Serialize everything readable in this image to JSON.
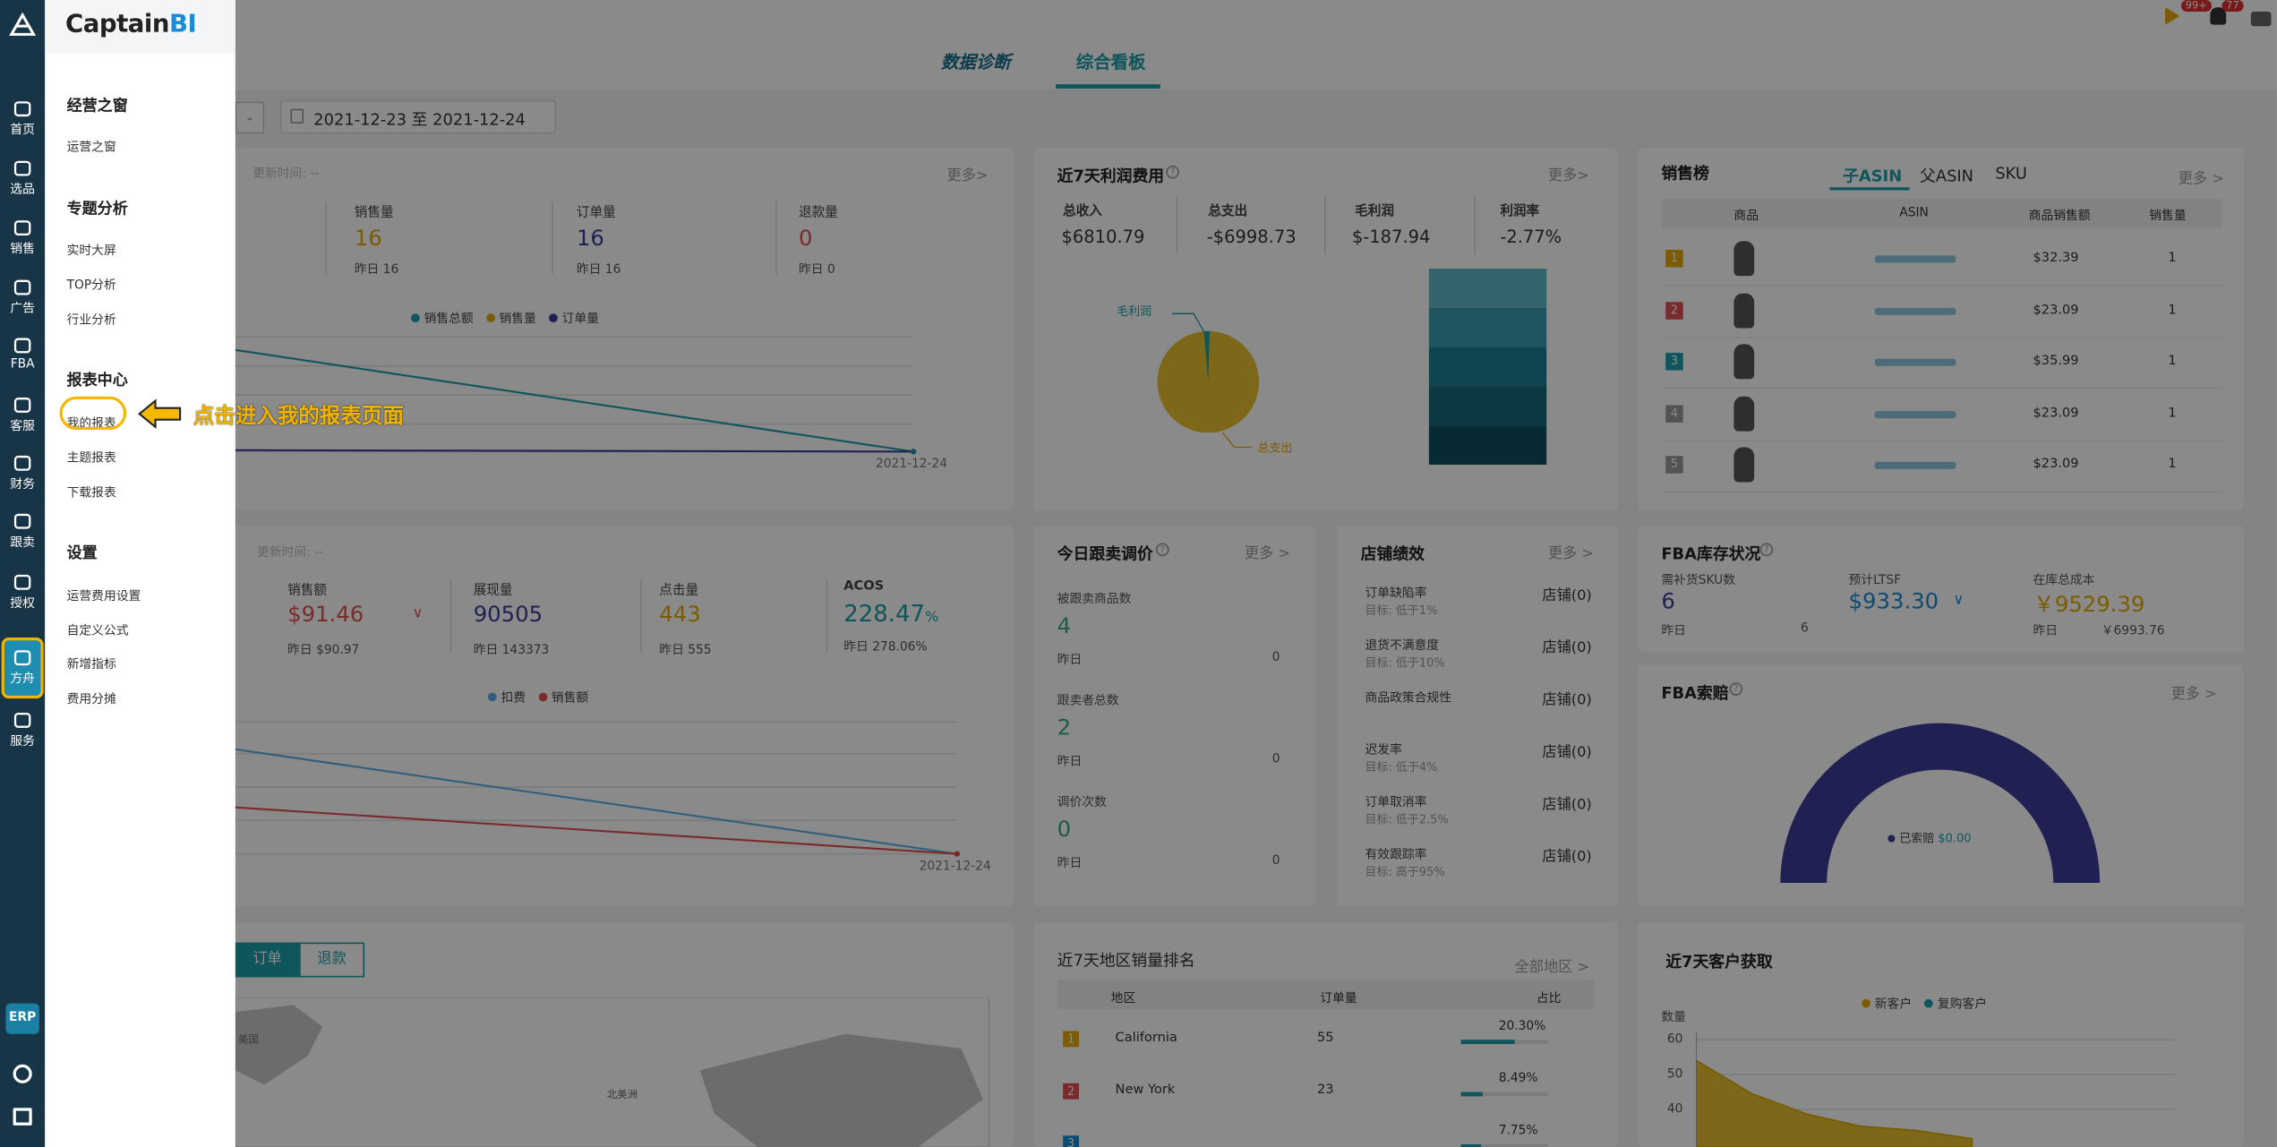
{
  "menu": {
    "brand_main": "Captain",
    "brand_bi": "BI",
    "sections": [
      {
        "title": "经营之窗",
        "items": [
          "运营之窗"
        ]
      },
      {
        "title": "专题分析",
        "items": [
          "实时大屏",
          "TOP分析",
          "行业分析"
        ]
      },
      {
        "title": "报表中心",
        "items": [
          "我的报表",
          "主题报表",
          "下载报表"
        ]
      },
      {
        "title": "设置",
        "items": [
          "运营费用设置",
          "自定义公式",
          "新增指标",
          "费用分摊"
        ]
      }
    ],
    "callout": "点击进入我的报表页面"
  },
  "rail": {
    "items": [
      {
        "label": "首页",
        "icon": "home-icon"
      },
      {
        "label": "选品",
        "icon": "search-icon"
      },
      {
        "label": "销售",
        "icon": "trend-chart-icon"
      },
      {
        "label": "广告",
        "icon": "ad-icon"
      },
      {
        "label": "FBA",
        "icon": "warehouse-icon"
      },
      {
        "label": "客服",
        "icon": "bar-chart-icon"
      },
      {
        "label": "财务",
        "icon": "dollar-icon"
      },
      {
        "label": "跟卖",
        "icon": "pie-chart-icon"
      },
      {
        "label": "授权",
        "icon": "shield-icon"
      },
      {
        "label": "方舟",
        "icon": "ark-icon"
      },
      {
        "label": "服务",
        "icon": "service-icon"
      }
    ],
    "erp": "ERP",
    "active": "方舟"
  },
  "header": {
    "tabs": [
      "数据诊断",
      "综合看板"
    ],
    "active_tab": "综合看板",
    "badge_play": "99+",
    "badge_bell": "77",
    "date_range": "2021-12-23 至 2021-12-24"
  },
  "sales_card": {
    "update_label": "更新时间: --",
    "more": "更多>",
    "metrics": [
      {
        "label": "销售量",
        "value": "16",
        "yesterday": "昨日 16",
        "color": "#e8a800"
      },
      {
        "label": "订单量",
        "value": "16",
        "yesterday": "昨日 16",
        "color": "#3b3b9a"
      },
      {
        "label": "退款量",
        "value": "0",
        "yesterday": "昨日 0",
        "color": "#e05050"
      }
    ],
    "legend": [
      "销售总额",
      "销售量",
      "订单量"
    ],
    "x_end": "2021-12-24"
  },
  "ad_card": {
    "update_label": "更新时间: --",
    "metrics": [
      {
        "label": "销售额",
        "value": "$91.46",
        "yesterday": "昨日  $90.97",
        "color": "#e05050"
      },
      {
        "label": "展现量",
        "value": "90505",
        "yesterday": "昨日  143373",
        "color": "#3b3b9a"
      },
      {
        "label": "点击量",
        "value": "443",
        "yesterday": "昨日  555",
        "color": "#e8a800"
      },
      {
        "label": "ACOS",
        "value": "228.47",
        "unit": "%",
        "yesterday": "昨日  278.06%",
        "color": "#1aa0a8"
      }
    ],
    "legend": [
      "扣费",
      "销售额"
    ],
    "x_end": "2021-12-24"
  },
  "profit_card": {
    "title": "近7天利润费用",
    "more": "更多>",
    "cols": [
      {
        "label": "总收入",
        "value": "$6810.79"
      },
      {
        "label": "总支出",
        "value": "-$6998.73"
      },
      {
        "label": "毛利润",
        "value": "$-187.94"
      },
      {
        "label": "利润率",
        "value": "-2.77%"
      }
    ],
    "pie_labels": [
      "毛利润",
      "总支出"
    ]
  },
  "rank_card": {
    "title": "销售榜",
    "tabs": [
      "子ASIN",
      "父ASIN",
      "SKU"
    ],
    "more": "更多 >",
    "headers": [
      "商品",
      "ASIN",
      "商品销售额",
      "销售量"
    ],
    "rows": [
      {
        "rank": "1",
        "amount": "$32.39",
        "qty": "1",
        "rank_color": "#e8a800"
      },
      {
        "rank": "2",
        "amount": "$23.09",
        "qty": "1",
        "rank_color": "#e05050"
      },
      {
        "rank": "3",
        "amount": "$35.99",
        "qty": "1",
        "rank_color": "#1aa0a8"
      },
      {
        "rank": "4",
        "amount": "$23.09",
        "qty": "1",
        "rank_color": "#999999"
      },
      {
        "rank": "5",
        "amount": "$23.09",
        "qty": "1",
        "rank_color": "#999999"
      }
    ]
  },
  "follow_card": {
    "title": "今日跟卖调价",
    "more": "更多 >",
    "items": [
      {
        "label": "被跟卖商品数",
        "value": "4",
        "yesterday": "昨日",
        "y_val": "0"
      },
      {
        "label": "跟卖者总数",
        "value": "2",
        "yesterday": "昨日",
        "y_val": "0"
      },
      {
        "label": "调价次数",
        "value": "0",
        "yesterday": "昨日",
        "y_val": "0"
      }
    ]
  },
  "store_card": {
    "title": "店铺绩效",
    "more": "更多 >",
    "items": [
      {
        "label": "订单缺陷率",
        "target": "目标: 低于1%",
        "value": "店铺(0)"
      },
      {
        "label": "退货不满意度",
        "target": "目标: 低于10%",
        "value": "店铺(0)"
      },
      {
        "label": "商品政策合规性",
        "target": "",
        "value": "店铺(0)"
      },
      {
        "label": "迟发率",
        "target": "目标: 低于4%",
        "value": "店铺(0)"
      },
      {
        "label": "订单取消率",
        "target": "目标: 低于2.5%",
        "value": "店铺(0)"
      },
      {
        "label": "有效跟踪率",
        "target": "目标: 高于95%",
        "value": "店铺(0)"
      }
    ]
  },
  "fba_card": {
    "title": "FBA库存状况",
    "cols": [
      {
        "label": "需补货SKU数",
        "value": "6",
        "yesterday": "昨日",
        "y_val": "6",
        "color": "#3b3b9a"
      },
      {
        "label": "预计LTSF",
        "value": "$933.30",
        "yesterday": "",
        "y_val": "",
        "color": "#1b8bd5"
      },
      {
        "label": "在库总成本",
        "value": "￥9529.39",
        "yesterday": "昨日",
        "y_val": "￥6993.76",
        "color": "#e8a800"
      }
    ]
  },
  "claim_card": {
    "title": "FBA索赔",
    "more": "更多 >",
    "legend": "已索赔",
    "legend_value": "$0.00"
  },
  "region_card": {
    "title": "近7天地区销量排名",
    "more": "全部地区 >",
    "headers": [
      "地区",
      "订单量",
      "占比"
    ],
    "rows": [
      {
        "rank": "1",
        "region": "California",
        "orders": "55",
        "pct": "20.30%",
        "pct_num": 20.3
      },
      {
        "rank": "2",
        "region": "New York",
        "orders": "23",
        "pct": "8.49%",
        "pct_num": 8.49
      },
      {
        "rank": "3",
        "region": "",
        "orders": "",
        "pct": "7.75%",
        "pct_num": 7.75
      }
    ]
  },
  "order_card": {
    "buttons": [
      "订单",
      "退款"
    ],
    "map_labels": [
      "美国",
      "北美洲"
    ]
  },
  "customer_card": {
    "title": "近7天客户获取",
    "legend": [
      "新客户",
      "复购客户"
    ],
    "y_label": "数量",
    "y_ticks": [
      "60",
      "50",
      "40"
    ]
  },
  "chart_data": [
    {
      "type": "area",
      "title": "近7天客户获取",
      "ylabel": "数量",
      "ylim": [
        35,
        60
      ],
      "series": [
        {
          "name": "新客户",
          "values": [
            55,
            47,
            42,
            39,
            38,
            36
          ]
        }
      ]
    }
  ]
}
